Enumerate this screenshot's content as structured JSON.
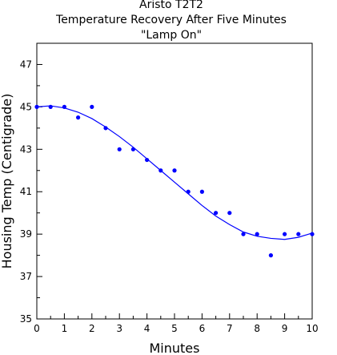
{
  "chart_data": {
    "type": "scatter",
    "title_lines": [
      "Aristo T2T2",
      "Temperature Recovery After Five Minutes",
      "\"Lamp On\""
    ],
    "xlabel": "Minutes",
    "ylabel": "Housing Temp (Centigrade)",
    "xlim": [
      0,
      10
    ],
    "ylim": [
      35,
      48
    ],
    "x_ticks": [
      "0",
      "1",
      "2",
      "3",
      "4",
      "5",
      "6",
      "7",
      "8",
      "9",
      "10"
    ],
    "y_ticks": [
      "35",
      "37",
      "39",
      "41",
      "43",
      "45",
      "47"
    ],
    "grid": false,
    "legend": "none",
    "series": [
      {
        "marker_color": "#0000ff",
        "points": [
          {
            "x": 0,
            "y": 45
          },
          {
            "x": 0.5,
            "y": 45
          },
          {
            "x": 1,
            "y": 45
          },
          {
            "x": 1.5,
            "y": 44.5
          },
          {
            "x": 2,
            "y": 45
          },
          {
            "x": 2.5,
            "y": 44
          },
          {
            "x": 3,
            "y": 43
          },
          {
            "x": 3.5,
            "y": 43
          },
          {
            "x": 4,
            "y": 42.5
          },
          {
            "x": 4.5,
            "y": 42
          },
          {
            "x": 5,
            "y": 42
          },
          {
            "x": 5.5,
            "y": 41
          },
          {
            "x": 6,
            "y": 41
          },
          {
            "x": 6.5,
            "y": 40
          },
          {
            "x": 7,
            "y": 40
          },
          {
            "x": 7.5,
            "y": 39
          },
          {
            "x": 8,
            "y": 39
          },
          {
            "x": 8.5,
            "y": 38
          },
          {
            "x": 9,
            "y": 39
          },
          {
            "x": 9.5,
            "y": 39
          },
          {
            "x": 10,
            "y": 39
          }
        ]
      }
    ],
    "fit_curve": {
      "color": "#0000ff",
      "points": [
        {
          "x": 0,
          "y": 45
        },
        {
          "x": 0.5,
          "y": 45.05
        },
        {
          "x": 1,
          "y": 44.95
        },
        {
          "x": 1.5,
          "y": 44.75
        },
        {
          "x": 2,
          "y": 44.45
        },
        {
          "x": 2.5,
          "y": 44.05
        },
        {
          "x": 3,
          "y": 43.6
        },
        {
          "x": 3.5,
          "y": 43.1
        },
        {
          "x": 4,
          "y": 42.55
        },
        {
          "x": 4.5,
          "y": 42.0
        },
        {
          "x": 5,
          "y": 41.45
        },
        {
          "x": 5.5,
          "y": 40.9
        },
        {
          "x": 6,
          "y": 40.35
        },
        {
          "x": 6.5,
          "y": 39.85
        },
        {
          "x": 7,
          "y": 39.45
        },
        {
          "x": 7.5,
          "y": 39.1
        },
        {
          "x": 8,
          "y": 38.9
        },
        {
          "x": 8.5,
          "y": 38.8
        },
        {
          "x": 9,
          "y": 38.75
        },
        {
          "x": 9.5,
          "y": 38.85
        },
        {
          "x": 10,
          "y": 39.05
        }
      ]
    }
  }
}
